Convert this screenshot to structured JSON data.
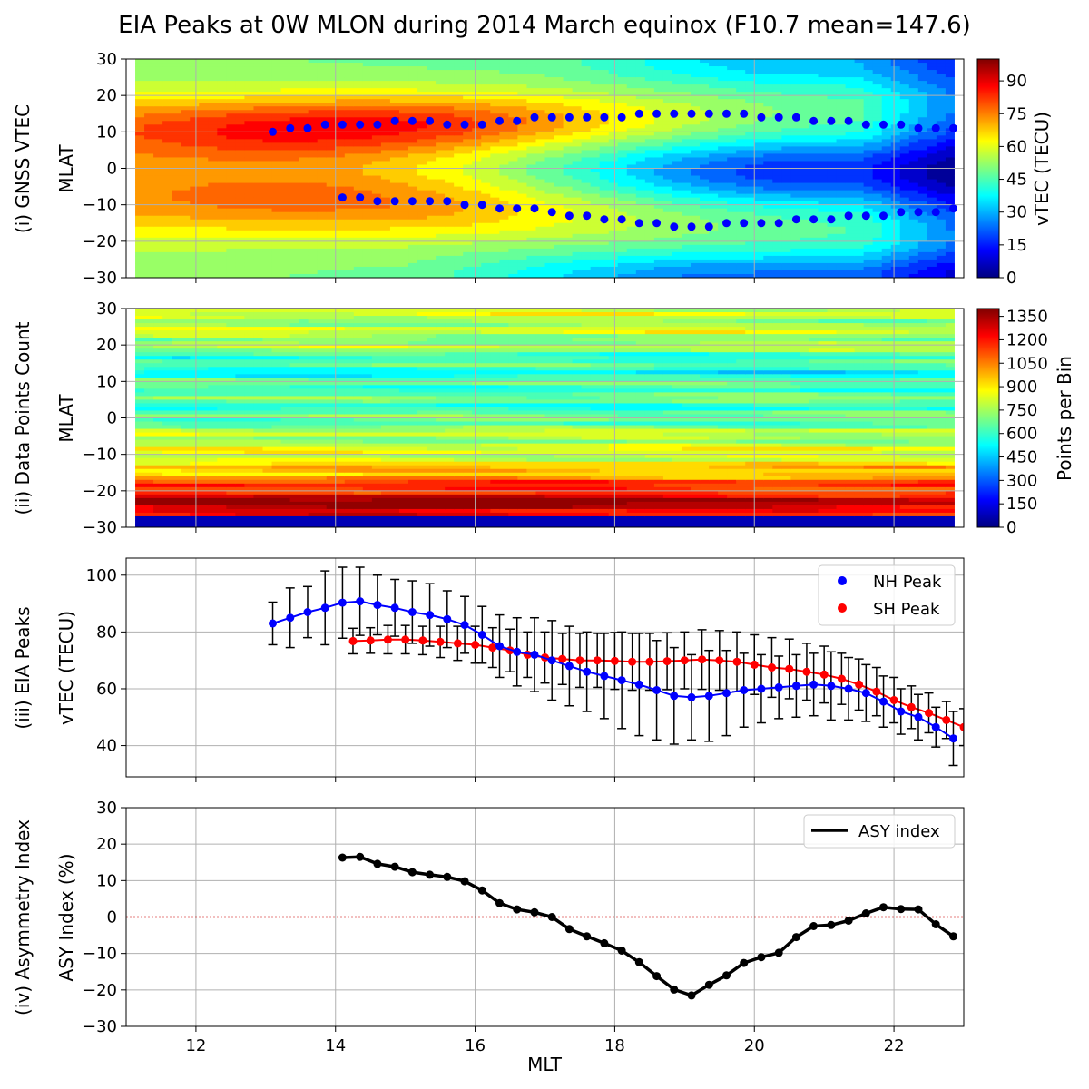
{
  "title": "EIA Peaks at 0W MLON during 2014 March equinox (F10.7 mean=147.6)",
  "colors": {
    "nh": "#0000ff",
    "sh": "#ff0000",
    "asy": "#000000",
    "zero_line": "#cc0000",
    "grid": "#b0b0b0"
  },
  "chart_data": [
    {
      "type": "heatmap",
      "panel_label": "(i) GNSS VTEC",
      "ylabel": "MLAT",
      "xlim": [
        11,
        23
      ],
      "ylim": [
        -30,
        30
      ],
      "x_ticks": [
        12,
        14,
        16,
        18,
        20,
        22
      ],
      "y_ticks": [
        -30,
        -20,
        -10,
        0,
        10,
        20,
        30
      ],
      "colorbar": {
        "label": "vTEC (TECU)",
        "range": [
          0,
          100
        ],
        "ticks": [
          0,
          15,
          30,
          45,
          60,
          75,
          90
        ],
        "colormap": "jet"
      },
      "nh_peak_markers": {
        "mlt": [
          13.1,
          13.35,
          13.6,
          13.85,
          14.1,
          14.35,
          14.6,
          14.85,
          15.1,
          15.35,
          15.6,
          15.85,
          16.1,
          16.35,
          16.6,
          16.85,
          17.1,
          17.35,
          17.6,
          17.85,
          18.1,
          18.35,
          18.6,
          18.85,
          19.1,
          19.35,
          19.6,
          19.85,
          20.1,
          20.35,
          20.6,
          20.85,
          21.1,
          21.35,
          21.6,
          21.85,
          22.1,
          22.35,
          22.6,
          22.85
        ],
        "mlat": [
          10,
          11,
          11,
          12,
          12,
          12,
          12,
          13,
          13,
          13,
          12,
          12,
          12,
          13,
          13,
          14,
          14,
          14,
          14,
          14,
          14,
          15,
          15,
          15,
          15,
          15,
          15,
          15,
          14,
          14,
          14,
          13,
          13,
          13,
          12,
          12,
          12,
          11,
          11,
          11
        ]
      },
      "sh_peak_markers": {
        "mlt": [
          14.1,
          14.35,
          14.6,
          14.85,
          15.1,
          15.35,
          15.6,
          15.85,
          16.1,
          16.35,
          16.6,
          16.85,
          17.1,
          17.35,
          17.6,
          17.85,
          18.1,
          18.35,
          18.6,
          18.85,
          19.1,
          19.35,
          19.6,
          19.85,
          20.1,
          20.35,
          20.6,
          20.85,
          21.1,
          21.35,
          21.6,
          21.85,
          22.1,
          22.35,
          22.6,
          22.85
        ],
        "mlat": [
          -8,
          -8,
          -9,
          -9,
          -9,
          -9,
          -9,
          -10,
          -10,
          -11,
          -11,
          -11,
          -12,
          -13,
          -13,
          -14,
          -14,
          -15,
          -15,
          -16,
          -16,
          -16,
          -15,
          -15,
          -15,
          -15,
          -14,
          -14,
          -14,
          -13,
          -13,
          -13,
          -12,
          -12,
          -12,
          -11
        ]
      }
    },
    {
      "type": "heatmap",
      "panel_label": "(ii) Data Points Count",
      "ylabel": "MLAT",
      "xlim": [
        11,
        23
      ],
      "ylim": [
        -30,
        30
      ],
      "x_ticks": [
        12,
        14,
        16,
        18,
        20,
        22
      ],
      "y_ticks": [
        -30,
        -20,
        -10,
        0,
        10,
        20,
        30
      ],
      "colorbar": {
        "label": "Points per Bin",
        "range": [
          0,
          1400
        ],
        "ticks": [
          0,
          150,
          300,
          450,
          600,
          750,
          900,
          1050,
          1200,
          1350
        ],
        "colormap": "jet"
      }
    },
    {
      "type": "scatter",
      "panel_label": "(iii) EIA Peaks",
      "ylabel": "vTEC (TECU)",
      "xlim": [
        11,
        23
      ],
      "ylim": [
        29,
        106
      ],
      "x_ticks": [
        12,
        14,
        16,
        18,
        20,
        22
      ],
      "y_ticks": [
        40,
        60,
        80,
        100
      ],
      "legend": "top-right",
      "series": [
        {
          "name": "NH Peak",
          "mlt": [
            13.1,
            13.35,
            13.6,
            13.85,
            14.1,
            14.35,
            14.6,
            14.85,
            15.1,
            15.35,
            15.6,
            15.85,
            16.1,
            16.35,
            16.6,
            16.85,
            17.1,
            17.35,
            17.6,
            17.85,
            18.1,
            18.35,
            18.6,
            18.85,
            19.1,
            19.35,
            19.6,
            19.85,
            20.1,
            20.35,
            20.6,
            20.85,
            21.1,
            21.35,
            21.6,
            21.85,
            22.1,
            22.35,
            22.6,
            22.85
          ],
          "values": [
            83,
            85,
            87,
            88.5,
            90.3,
            90.8,
            89.5,
            88.5,
            87,
            86,
            84.5,
            82.5,
            79,
            75,
            73,
            72,
            70,
            68,
            66,
            64.5,
            63,
            61.5,
            59.5,
            57.5,
            57,
            57.5,
            58.5,
            59.5,
            60,
            60.5,
            61,
            61.5,
            61,
            60,
            58.5,
            55.5,
            52,
            50,
            46.5,
            42.5
          ],
          "errors": [
            7.5,
            10.5,
            9,
            13,
            12.5,
            12,
            10.5,
            10,
            11,
            11,
            10,
            10,
            10,
            11,
            12,
            13,
            14,
            14,
            14,
            15,
            17,
            18,
            17.5,
            17,
            15,
            16,
            15,
            13,
            12,
            11,
            11,
            11,
            12,
            11,
            10,
            9,
            8,
            8,
            7,
            9.5
          ]
        },
        {
          "name": "SH Peak",
          "mlt": [
            14.25,
            14.5,
            14.75,
            15.0,
            15.25,
            15.5,
            15.75,
            16.0,
            16.25,
            16.5,
            16.75,
            17.0,
            17.25,
            17.5,
            17.75,
            18.0,
            18.25,
            18.5,
            18.75,
            19.0,
            19.25,
            19.5,
            19.75,
            20.0,
            20.25,
            20.5,
            20.75,
            21.0,
            21.25,
            21.5,
            21.75,
            22.0,
            22.25,
            22.5,
            22.75,
            23.0
          ],
          "values": [
            76.8,
            77,
            77.3,
            77.3,
            77,
            76.5,
            76,
            75.5,
            74.5,
            73.5,
            72,
            71,
            70.5,
            70,
            70,
            69.8,
            69.5,
            69.5,
            69.7,
            70,
            70.3,
            70,
            69.5,
            68.5,
            67.5,
            67,
            66,
            65,
            63.5,
            61.5,
            59,
            56,
            53.5,
            51.5,
            49,
            46.5
          ],
          "errors": [
            4.5,
            4.5,
            5,
            5,
            5,
            5.5,
            6,
            6.5,
            7,
            7.5,
            8,
            9,
            9,
            9.5,
            9.5,
            10,
            10,
            10,
            10,
            10,
            10.5,
            10.5,
            10.5,
            10.5,
            10.5,
            10.5,
            10,
            10,
            9,
            9,
            8.5,
            8,
            7.5,
            7,
            6.5,
            6.5
          ]
        }
      ]
    },
    {
      "type": "line",
      "panel_label": "(iv) Asymmetry Index",
      "ylabel": "ASY Index (%)",
      "xlabel": "MLT",
      "xlim": [
        11,
        23
      ],
      "ylim": [
        -30,
        30
      ],
      "x_ticks": [
        12,
        14,
        16,
        18,
        20,
        22
      ],
      "y_ticks": [
        -30,
        -20,
        -10,
        0,
        10,
        20,
        30
      ],
      "reference_line": 0,
      "legend": "top-right",
      "series": [
        {
          "name": "ASY index",
          "mlt": [
            14.1,
            14.35,
            14.6,
            14.85,
            15.1,
            15.35,
            15.6,
            15.85,
            16.1,
            16.35,
            16.6,
            16.85,
            17.1,
            17.35,
            17.6,
            17.85,
            18.1,
            18.35,
            18.6,
            18.85,
            19.1,
            19.35,
            19.6,
            19.85,
            20.1,
            20.35,
            20.6,
            20.85,
            21.1,
            21.35,
            21.6,
            21.85,
            22.1,
            22.35,
            22.6,
            22.85
          ],
          "values": [
            16.3,
            16.5,
            14.6,
            13.8,
            12.3,
            11.6,
            11,
            9.8,
            7.3,
            3.8,
            2.1,
            1.3,
            0,
            -3.3,
            -5.3,
            -7.2,
            -9.2,
            -12.4,
            -16.2,
            -19.9,
            -21.5,
            -18.6,
            -16,
            -12.6,
            -11,
            -9.8,
            -5.5,
            -2.5,
            -2.2,
            -1,
            1,
            2.7,
            2.2,
            2.1,
            -2,
            -5.3
          ]
        }
      ]
    }
  ]
}
